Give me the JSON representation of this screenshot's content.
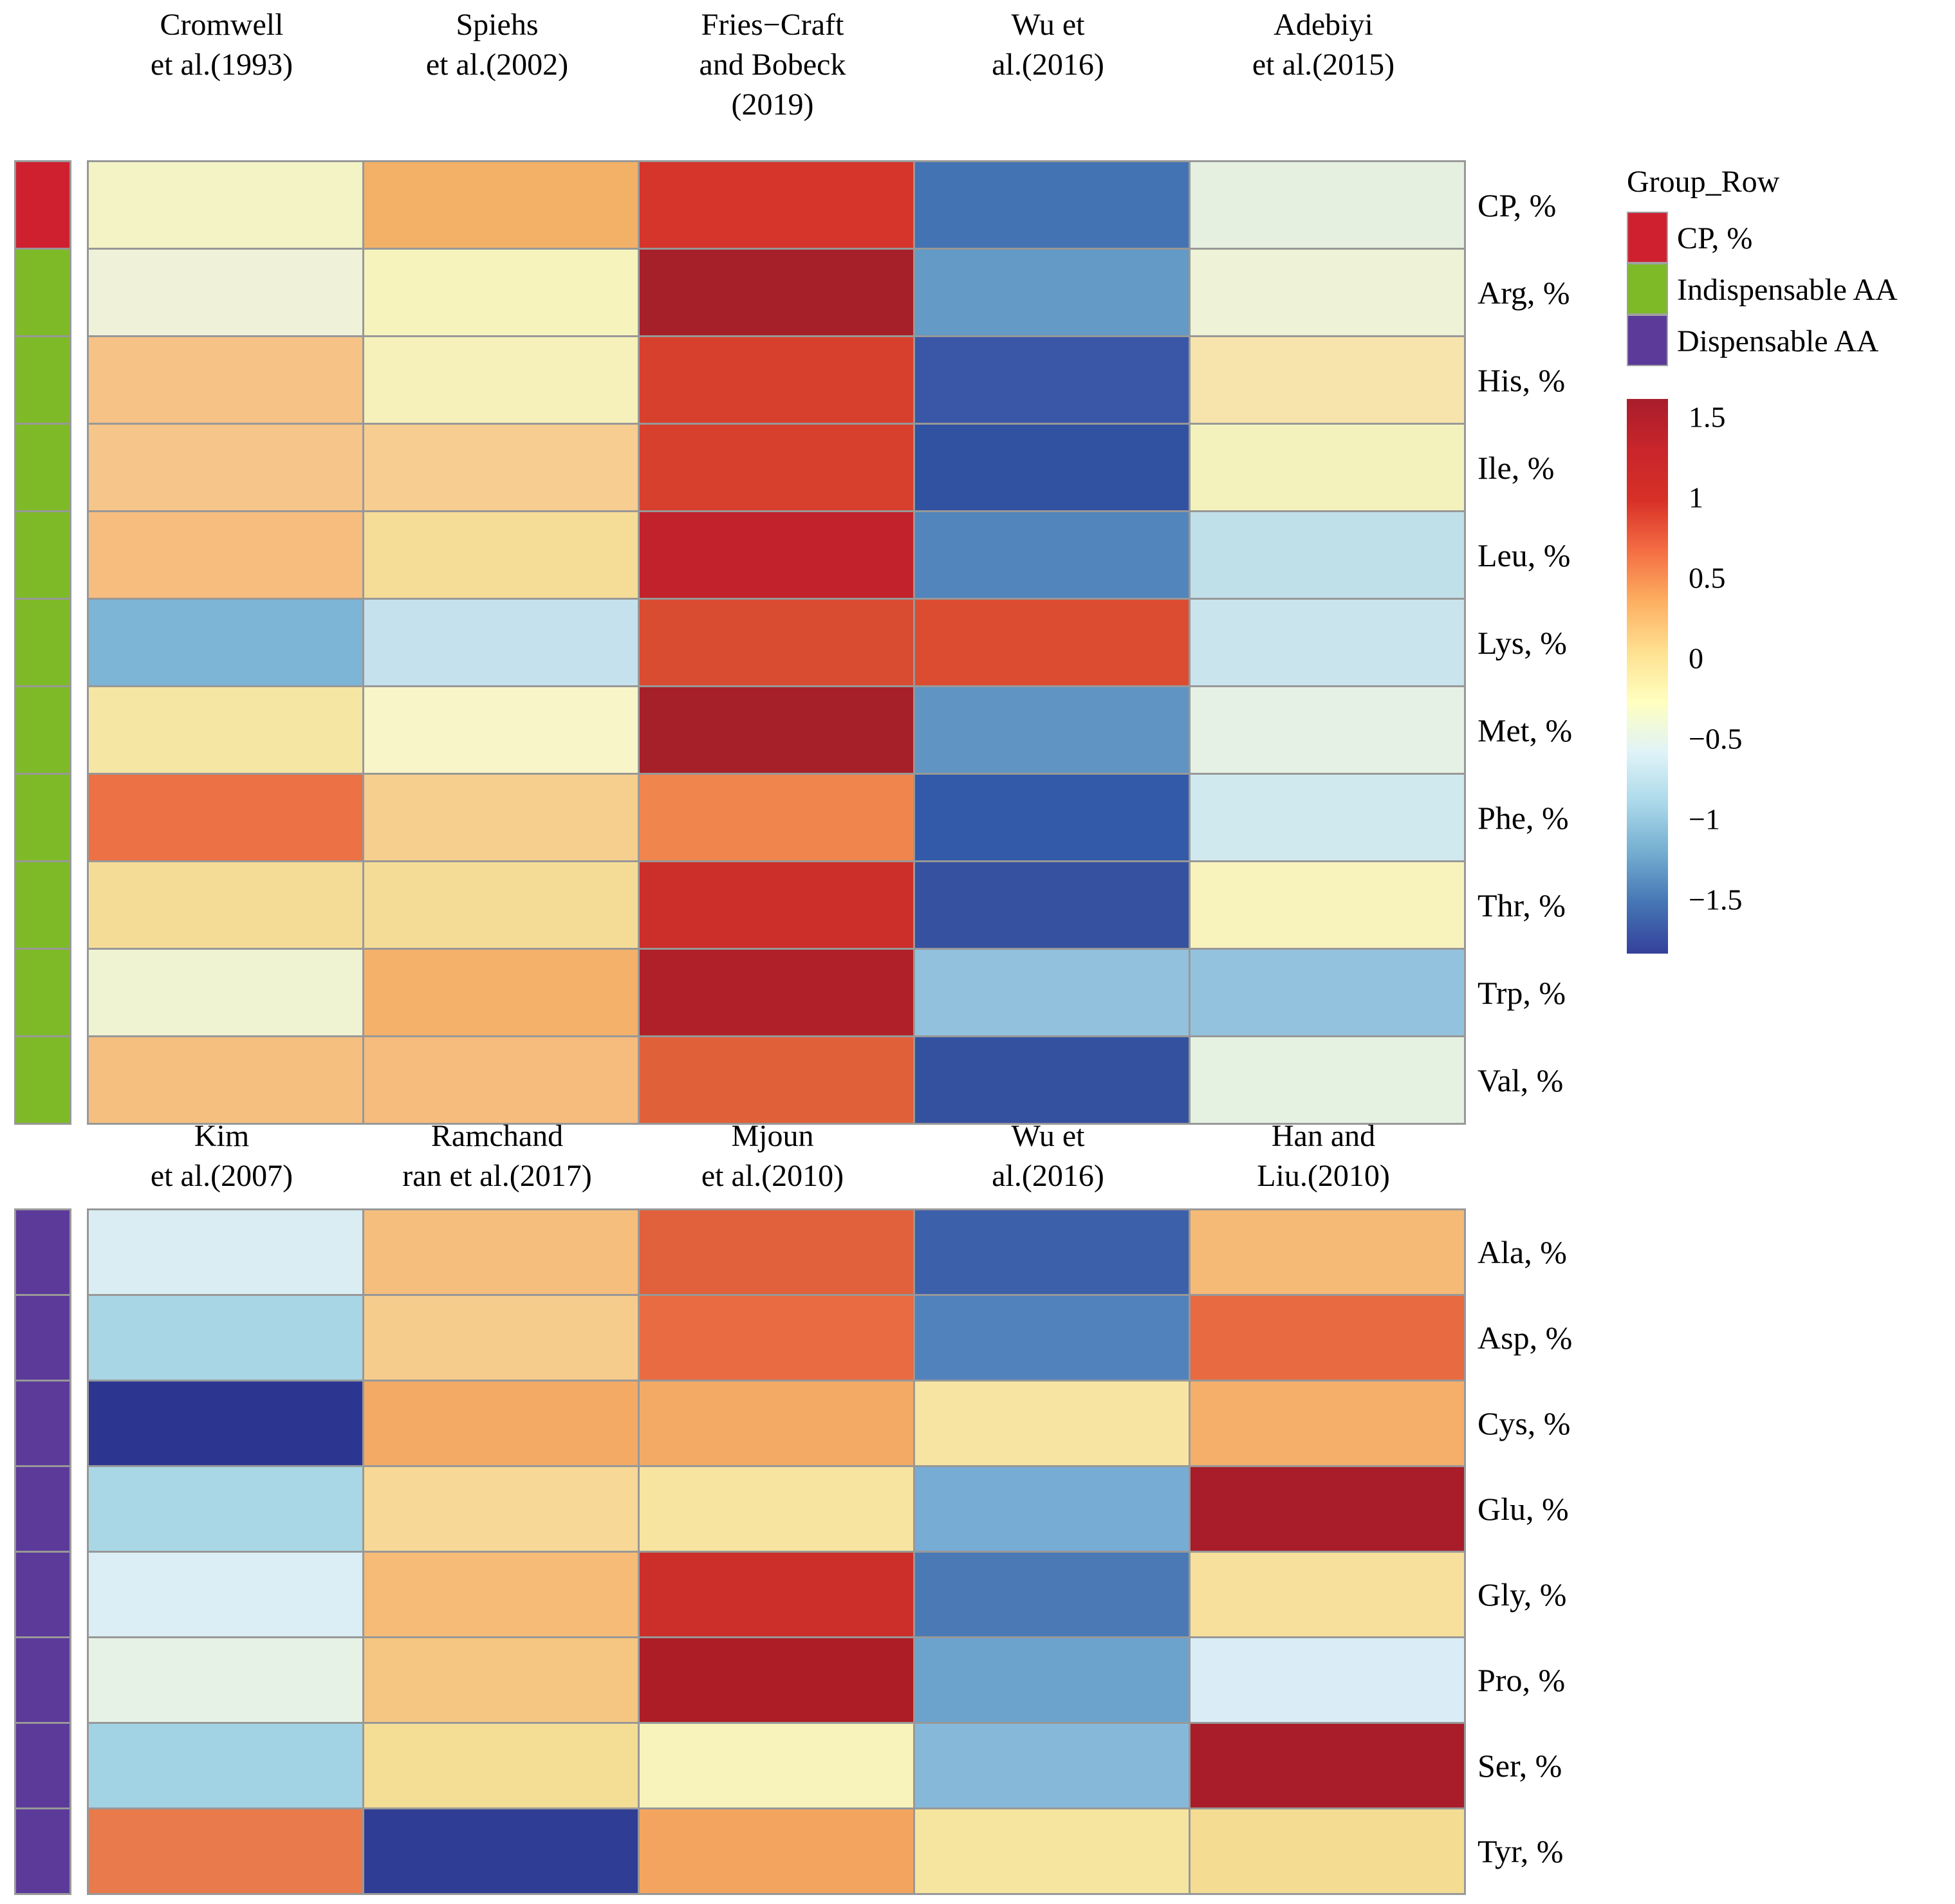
{
  "figure": {
    "description": "Two-panel heatmap of standardized (z-score) crude protein and amino acid composition values across published studies",
    "background": "#ffffff",
    "grid_line_color": "#989898"
  },
  "chart_data": {
    "type": "heatmap",
    "palette": "RdYlBu (red = high z-score, yellow = 0, blue = low)",
    "legend_position": "right of top panel",
    "value_range": [
      -1.75,
      1.75
    ],
    "groups": {
      "cp": {
        "label": "CP, %",
        "color": "#cf2030"
      },
      "indispensable": {
        "label": "Indispensable AA",
        "color": "#7eba28"
      },
      "dispensable": {
        "label": "Dispensable AA",
        "color": "#5b3a9a"
      }
    },
    "legend": {
      "title": "Group_Row",
      "items": [
        {
          "label": "CP, %",
          "color": "#cf2030"
        },
        {
          "label": "Indispensable AA",
          "color": "#7eba28"
        },
        {
          "label": "Dispensable AA",
          "color": "#5b3a9a"
        }
      ]
    },
    "colorbar": {
      "ticks": [
        "1.5",
        "1",
        "0.5",
        "0",
        "−0.5",
        "−1",
        "−1.5"
      ],
      "gradient": [
        "#a81d2b",
        "#c9252b",
        "#d73027",
        "#f46d43",
        "#fdae61",
        "#fee090",
        "#ffffbf",
        "#e0f3f8",
        "#abd9e9",
        "#74add1",
        "#4575b4",
        "#35409b"
      ]
    },
    "heatmaps": [
      {
        "panel": "top",
        "columns": [
          {
            "name": "Cromwell et al.(1993)",
            "lines": [
              "Cromwell",
              "et al.(1993)"
            ]
          },
          {
            "name": "Spiehs et al.(2002)",
            "lines": [
              "Spiehs",
              "et al.(2002)"
            ]
          },
          {
            "name": "Fries−Craft and Bobeck (2019)",
            "lines": [
              "Fries−Craft",
              "and Bobeck",
              "(2019)"
            ]
          },
          {
            "name": "Wu et al.(2016)",
            "lines": [
              "Wu et",
              "al.(2016)"
            ]
          },
          {
            "name": "Adebiyi et al.(2015)",
            "lines": [
              "Adebiyi",
              "et al.(2015)"
            ]
          }
        ],
        "rows": [
          {
            "label": "CP, %",
            "group": "cp",
            "values": [
              0.0,
              0.5,
              1.1,
              -1.1,
              -0.3
            ],
            "colors": [
              "#f3f3c5",
              "#f3b167",
              "#d5352b",
              "#4473b3",
              "#e5f0e1"
            ]
          },
          {
            "label": "Arg, %",
            "group": "indispensable",
            "values": [
              -0.15,
              0.0,
              1.5,
              -0.85,
              -0.15
            ],
            "colors": [
              "#eff2d9",
              "#f6f3bd",
              "#a6202a",
              "#639ac6",
              "#eef2d6"
            ]
          },
          {
            "label": "His, %",
            "group": "indispensable",
            "values": [
              0.4,
              0.05,
              1.05,
              -1.35,
              0.2
            ],
            "colors": [
              "#f6c286",
              "#f6f0ba",
              "#d8402e",
              "#3a56a6",
              "#f7e3ac"
            ]
          },
          {
            "label": "Ile, %",
            "group": "indispensable",
            "values": [
              0.4,
              0.3,
              1.05,
              -1.4,
              0.0
            ],
            "colors": [
              "#f6c589",
              "#f7cd92",
              "#d8402e",
              "#3152a1",
              "#f3f2bd"
            ]
          },
          {
            "label": "Leu, %",
            "group": "indispensable",
            "values": [
              0.45,
              0.2,
              1.25,
              -0.95,
              -0.5
            ],
            "colors": [
              "#f6bd7e",
              "#f5dc97",
              "#c2222b",
              "#5285bb",
              "#c0e0e9"
            ]
          },
          {
            "label": "Lys, %",
            "group": "indispensable",
            "values": [
              -0.75,
              -0.45,
              0.95,
              0.95,
              -0.45
            ],
            "colors": [
              "#7cb5d6",
              "#c5e1ed",
              "#da4c32",
              "#dc4c31",
              "#c9e4ed"
            ]
          },
          {
            "label": "Met, %",
            "group": "indispensable",
            "values": [
              0.15,
              -0.05,
              1.5,
              -0.85,
              -0.3
            ],
            "colors": [
              "#f6e6a4",
              "#f8f5c9",
              "#a6202a",
              "#6094c3",
              "#e5f1e4"
            ]
          },
          {
            "label": "Phe, %",
            "group": "indispensable",
            "values": [
              0.75,
              0.3,
              0.65,
              -1.3,
              -0.45
            ],
            "colors": [
              "#ec7144",
              "#f6cf8e",
              "#f0854d",
              "#325aa9",
              "#d0e9ef"
            ]
          },
          {
            "label": "Thr, %",
            "group": "indispensable",
            "values": [
              0.2,
              0.2,
              1.15,
              -1.35,
              0.0
            ],
            "colors": [
              "#f5dc96",
              "#f5dc96",
              "#cc2e29",
              "#36519f",
              "#f8f3bc"
            ]
          },
          {
            "label": "Trp, %",
            "group": "indispensable",
            "values": [
              -0.1,
              0.5,
              1.4,
              -0.7,
              -0.7
            ],
            "colors": [
              "#eff3d1",
              "#f4b169",
              "#b02028",
              "#91c1dd",
              "#93c2de"
            ]
          },
          {
            "label": "Val, %",
            "group": "indispensable",
            "values": [
              0.4,
              0.45,
              0.85,
              -1.35,
              -0.3
            ],
            "colors": [
              "#f5bf80",
              "#f5bc7d",
              "#e0603a",
              "#34519f",
              "#e5f1e1"
            ]
          }
        ]
      },
      {
        "panel": "bottom",
        "columns": [
          {
            "name": "Kim et al.(2007)",
            "lines": [
              "Kim",
              "et al.(2007)"
            ]
          },
          {
            "name": "Ramchandran et al.(2017)",
            "lines": [
              "Ramchand",
              "ran et al.(2017)"
            ]
          },
          {
            "name": "Mjoun et al.(2010)",
            "lines": [
              "Mjoun",
              "et al.(2010)"
            ]
          },
          {
            "name": "Wu et al.(2016)",
            "lines": [
              "Wu et",
              "al.(2016)"
            ]
          },
          {
            "name": "Han and Liu.(2010)",
            "lines": [
              "Han and",
              "Liu.(2010)"
            ]
          }
        ],
        "rows": [
          {
            "label": "Ala, %",
            "group": "dispensable",
            "values": [
              -0.4,
              0.4,
              0.85,
              -1.3,
              0.45
            ],
            "colors": [
              "#d9edf3",
              "#f5be7d",
              "#e0613c",
              "#3d60aa",
              "#f4ba76"
            ]
          },
          {
            "label": "Asp, %",
            "group": "dispensable",
            "values": [
              -0.6,
              0.3,
              0.75,
              -0.95,
              0.8
            ],
            "colors": [
              "#a8d6e5",
              "#f6cc8d",
              "#e86b42",
              "#5182bc",
              "#e86a40"
            ]
          },
          {
            "label": "Cys, %",
            "group": "dispensable",
            "values": [
              -1.6,
              0.5,
              0.5,
              0.15,
              0.5
            ],
            "colors": [
              "#2c3691",
              "#f3aa65",
              "#f3aa65",
              "#f7e4a3",
              "#f5af6b"
            ]
          },
          {
            "label": "Glu, %",
            "group": "dispensable",
            "values": [
              -0.6,
              0.25,
              0.15,
              -0.8,
              1.5
            ],
            "colors": [
              "#a9d7e6",
              "#f7d896",
              "#f7e4a1",
              "#77acd4",
              "#a81d29"
            ]
          },
          {
            "label": "Gly, %",
            "group": "dispensable",
            "values": [
              -0.4,
              0.45,
              1.15,
              -1.0,
              0.2
            ],
            "colors": [
              "#dbedf5",
              "#f5bb77",
              "#cc2e29",
              "#4b79b5",
              "#f6e09b"
            ]
          },
          {
            "label": "Pro, %",
            "group": "dispensable",
            "values": [
              -0.3,
              0.35,
              1.45,
              -0.8,
              -0.4
            ],
            "colors": [
              "#e6f2e5",
              "#f5c682",
              "#ac1d25",
              "#6ca3cd",
              "#daedf6"
            ]
          },
          {
            "label": "Ser, %",
            "group": "dispensable",
            "values": [
              -0.65,
              0.2,
              0.0,
              -0.7,
              1.5
            ],
            "colors": [
              "#a1d3e5",
              "#f4dd94",
              "#f7f3bb",
              "#86b9d9",
              "#a81d29"
            ]
          },
          {
            "label": "Tyr, %",
            "group": "dispensable",
            "values": [
              0.7,
              -1.55,
              0.55,
              0.15,
              0.2
            ],
            "colors": [
              "#e87a4b",
              "#303d95",
              "#f3a55f",
              "#f6e59f",
              "#f4dd93"
            ]
          }
        ]
      }
    ]
  }
}
